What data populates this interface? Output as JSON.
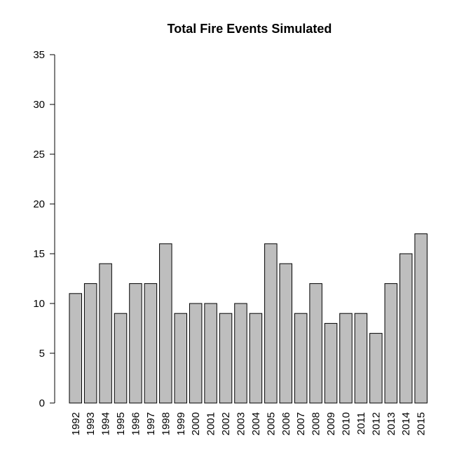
{
  "chart_data": {
    "type": "bar",
    "title": "Total Fire Events Simulated",
    "xlabel": "",
    "ylabel": "",
    "categories": [
      "1992",
      "1993",
      "1994",
      "1995",
      "1996",
      "1997",
      "1998",
      "1999",
      "2000",
      "2001",
      "2002",
      "2003",
      "2004",
      "2005",
      "2006",
      "2007",
      "2008",
      "2009",
      "2010",
      "2011",
      "2012",
      "2013",
      "2014",
      "2015"
    ],
    "values": [
      11,
      12,
      14,
      9,
      12,
      12,
      16,
      9,
      10,
      10,
      9,
      10,
      9,
      16,
      14,
      9,
      12,
      8,
      9,
      9,
      7,
      12,
      15,
      17
    ],
    "ylim": [
      0,
      35
    ],
    "yticks": [
      0,
      5,
      10,
      15,
      20,
      25,
      30,
      35
    ],
    "bar_color": "#bebebe",
    "grid": false,
    "x_tick_orientation": "vertical"
  }
}
